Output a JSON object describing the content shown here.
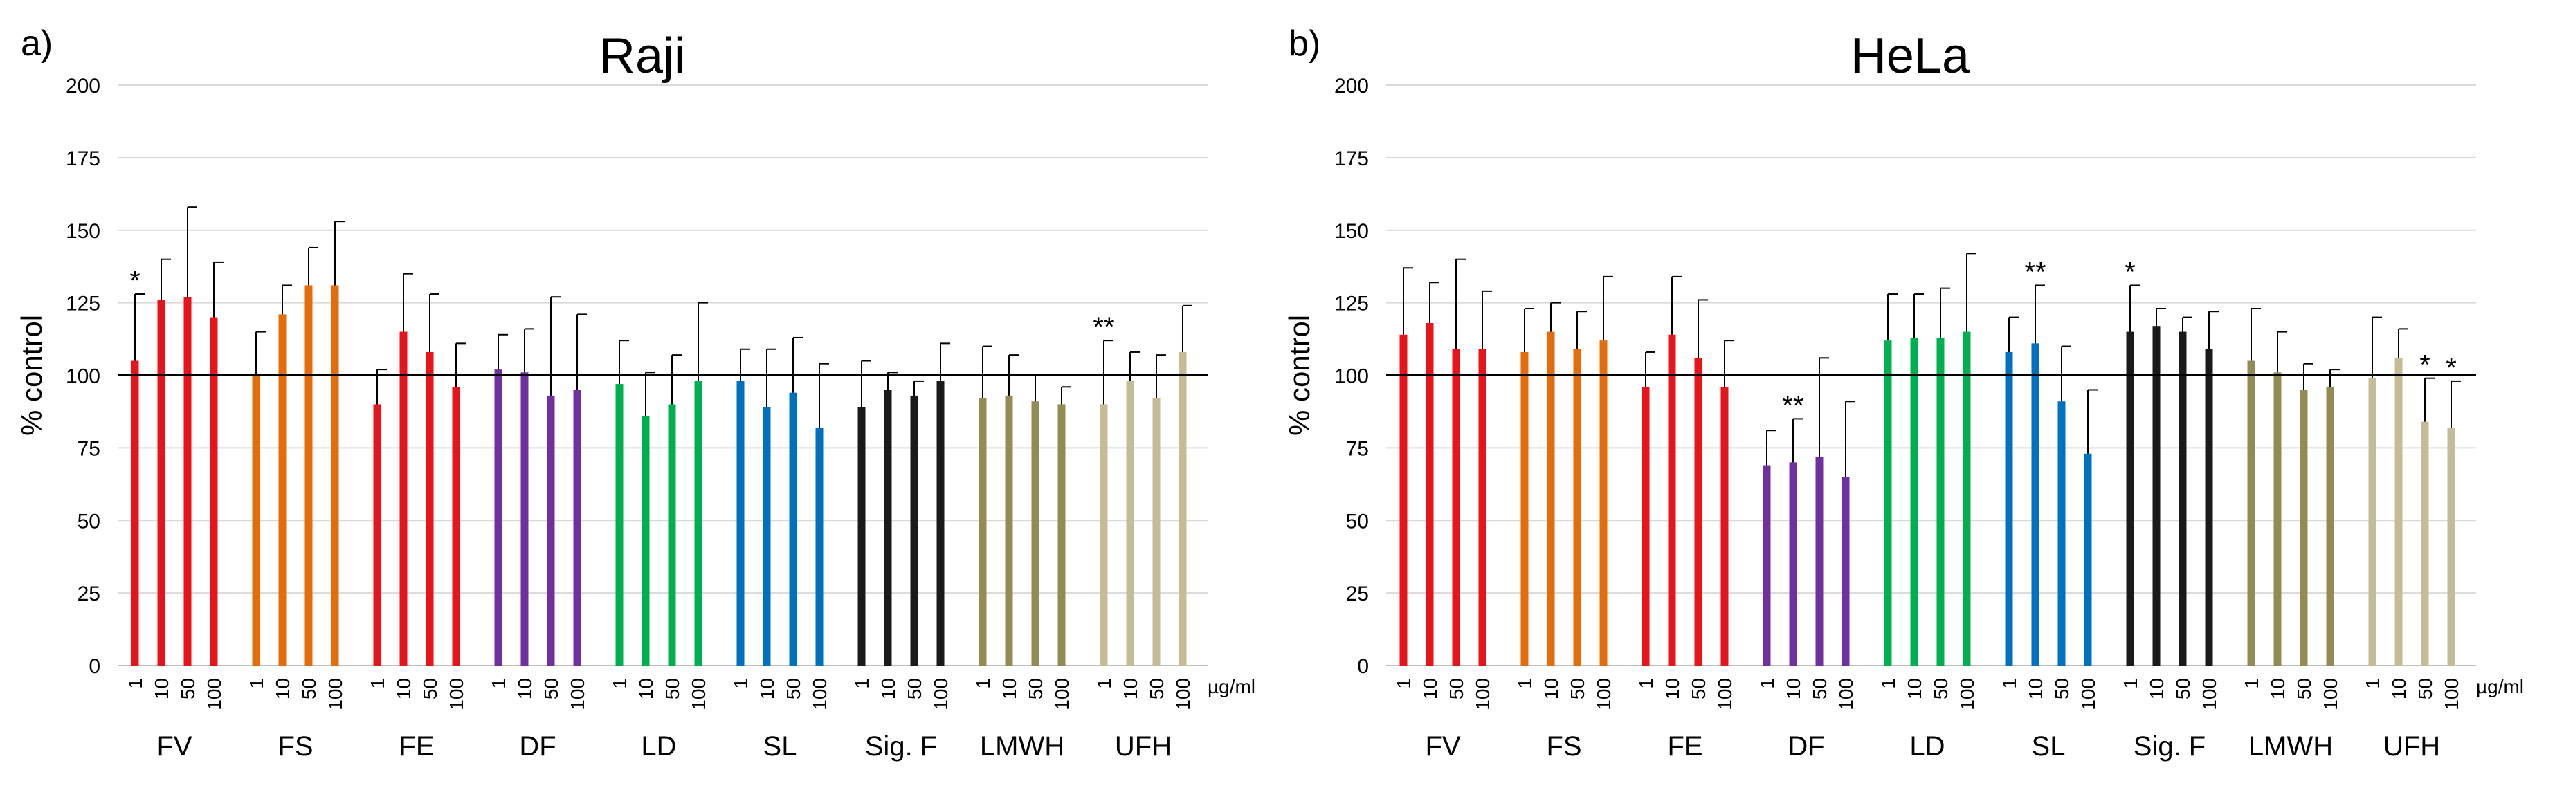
{
  "chart_data": [
    {
      "panel_label": "a)",
      "type": "bar",
      "title": "Raji",
      "xlabel": "",
      "ylabel": "% control",
      "ylim": [
        0,
        200
      ],
      "yticks": [
        0,
        25,
        50,
        75,
        100,
        125,
        150,
        175,
        200
      ],
      "reference_line": 100,
      "grid": true,
      "unit_label": "µg/ml",
      "concentrations": [
        "1",
        "10",
        "50",
        "100"
      ],
      "groups": [
        {
          "name": "FV",
          "color": "#e8141b",
          "values": [
            105,
            126,
            127,
            120
          ],
          "errors": [
            23,
            14,
            31,
            19
          ],
          "significance": [
            "*",
            "",
            "",
            ""
          ]
        },
        {
          "name": "FS",
          "color": "#e46c0a",
          "values": [
            100,
            121,
            131,
            131
          ],
          "errors": [
            15,
            10,
            13,
            22
          ],
          "significance": [
            "",
            "",
            "",
            ""
          ]
        },
        {
          "name": "FE",
          "color": "#e8141b",
          "values": [
            90,
            115,
            108,
            96
          ],
          "errors": [
            12,
            20,
            20,
            15
          ],
          "significance": [
            "",
            "",
            "",
            ""
          ]
        },
        {
          "name": "DF",
          "color": "#7030a0",
          "values": [
            102,
            101,
            93,
            95
          ],
          "errors": [
            12,
            15,
            34,
            26
          ],
          "significance": [
            "",
            "",
            "",
            ""
          ]
        },
        {
          "name": "LD",
          "color": "#00b050",
          "values": [
            97,
            86,
            90,
            98
          ],
          "errors": [
            15,
            15,
            17,
            27
          ],
          "significance": [
            "",
            "",
            "",
            ""
          ]
        },
        {
          "name": "SL",
          "color": "#0070c0",
          "values": [
            98,
            89,
            94,
            82
          ],
          "errors": [
            11,
            20,
            19,
            22
          ],
          "significance": [
            "",
            "",
            "",
            ""
          ]
        },
        {
          "name": "Sig. F",
          "color": "#1a1a1a",
          "values": [
            89,
            95,
            93,
            98
          ],
          "errors": [
            16,
            6,
            5,
            13
          ],
          "significance": [
            "",
            "",
            "",
            ""
          ]
        },
        {
          "name": "LMWH",
          "color": "#948a54",
          "values": [
            92,
            93,
            91,
            90
          ],
          "errors": [
            18,
            14,
            9,
            6
          ],
          "significance": [
            "",
            "",
            "",
            ""
          ]
        },
        {
          "name": "UFH",
          "color": "#c4bc96",
          "values": [
            90,
            98,
            92,
            108
          ],
          "errors": [
            22,
            10,
            15,
            16
          ],
          "significance": [
            "**",
            "",
            "",
            ""
          ]
        }
      ]
    },
    {
      "panel_label": "b)",
      "type": "bar",
      "title": "HeLa",
      "xlabel": "",
      "ylabel": "% control",
      "ylim": [
        0,
        200
      ],
      "yticks": [
        0,
        25,
        50,
        75,
        100,
        125,
        150,
        175,
        200
      ],
      "reference_line": 100,
      "grid": true,
      "unit_label": "µg/ml",
      "concentrations": [
        "1",
        "10",
        "50",
        "100"
      ],
      "groups": [
        {
          "name": "FV",
          "color": "#e8141b",
          "values": [
            114,
            118,
            109,
            109
          ],
          "errors": [
            23,
            14,
            31,
            20
          ],
          "significance": [
            "",
            "",
            "",
            ""
          ]
        },
        {
          "name": "FS",
          "color": "#e46c0a",
          "values": [
            108,
            115,
            109,
            112
          ],
          "errors": [
            15,
            10,
            13,
            22
          ],
          "significance": [
            "",
            "",
            "",
            ""
          ]
        },
        {
          "name": "FE",
          "color": "#e8141b",
          "values": [
            96,
            114,
            106,
            96
          ],
          "errors": [
            12,
            20,
            20,
            16
          ],
          "significance": [
            "",
            "",
            "",
            ""
          ]
        },
        {
          "name": "DF",
          "color": "#7030a0",
          "values": [
            69,
            70,
            72,
            65
          ],
          "errors": [
            12,
            15,
            34,
            26
          ],
          "significance": [
            "",
            "**",
            "",
            ""
          ]
        },
        {
          "name": "LD",
          "color": "#00b050",
          "values": [
            112,
            113,
            113,
            115
          ],
          "errors": [
            16,
            15,
            17,
            27
          ],
          "significance": [
            "",
            "",
            "",
            ""
          ]
        },
        {
          "name": "SL",
          "color": "#0070c0",
          "values": [
            108,
            111,
            91,
            73
          ],
          "errors": [
            12,
            20,
            19,
            22
          ],
          "significance": [
            "",
            "**",
            "",
            ""
          ]
        },
        {
          "name": "Sig. F",
          "color": "#1a1a1a",
          "values": [
            115,
            117,
            115,
            109
          ],
          "errors": [
            16,
            6,
            5,
            13
          ],
          "significance": [
            "*",
            "",
            "",
            ""
          ]
        },
        {
          "name": "LMWH",
          "color": "#948a54",
          "values": [
            105,
            101,
            95,
            96
          ],
          "errors": [
            18,
            14,
            9,
            6
          ],
          "significance": [
            "",
            "",
            "",
            ""
          ]
        },
        {
          "name": "UFH",
          "color": "#c4bc96",
          "values": [
            99,
            106,
            84,
            82
          ],
          "errors": [
            21,
            10,
            15,
            16
          ],
          "significance": [
            "",
            "",
            "*",
            "*"
          ]
        }
      ]
    }
  ]
}
